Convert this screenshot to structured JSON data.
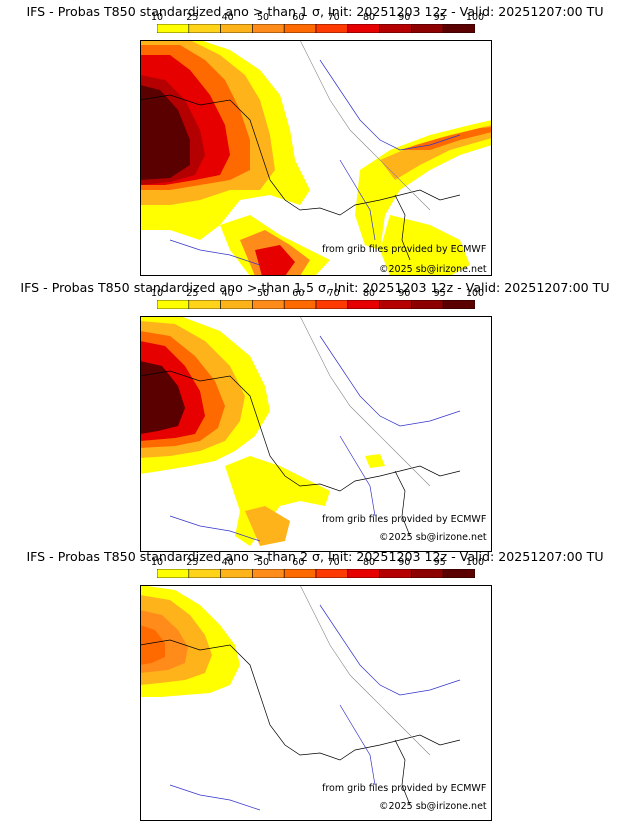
{
  "legend": {
    "labels": [
      "10",
      "25",
      "40",
      "50",
      "60",
      "70",
      "80",
      "90",
      "95",
      "100"
    ],
    "colors": [
      "#ffff00",
      "#ffd31a",
      "#ffb31a",
      "#ff8c1a",
      "#ff6a00",
      "#ff3a00",
      "#e60000",
      "#b40000",
      "#8c0000",
      "#5a0000"
    ]
  },
  "panels": [
    {
      "title": "IFS - Probas T850  standardized ano > than 1 σ, Init: 20251203 12z - Valid: 20251207:00 TU",
      "source": "from grib files provided by ECMWF",
      "copyright": "©2025 sb@irizone.net"
    },
    {
      "title": "IFS - Probas T850  standardized ano > than 1.5 σ, Init: 20251203 12z - Valid: 20251207:00 TU",
      "source": "from grib files provided by ECMWF",
      "copyright": "©2025 sb@irizone.net"
    },
    {
      "title": "IFS - Probas T850  standardized ano > than 2 σ, Init: 20251203 12z - Valid: 20251207:00 TU",
      "source": "from grib files provided by ECMWF",
      "copyright": "©2025 sb@irizone.net"
    }
  ]
}
